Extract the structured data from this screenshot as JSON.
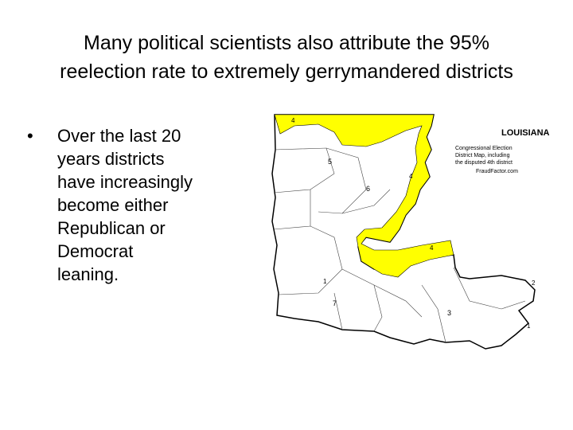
{
  "header": {
    "title_lines": [
      "Many political scientists also attribute the 95%",
      "reelection rate to extremely gerrymandered districts"
    ]
  },
  "bullets": [
    "Over the last 20 years districts have increasingly become either Republican or Democrat leaning."
  ],
  "map": {
    "title": "LOUISIANA",
    "caption_lines": [
      "Congressional Election",
      "District Map, including",
      "the disputed 4th district"
    ],
    "credit": "FraudFactor.com",
    "district_labels": [
      "4",
      "5",
      "6",
      "4",
      "4",
      "1",
      "7",
      "3",
      "2",
      "1"
    ]
  }
}
